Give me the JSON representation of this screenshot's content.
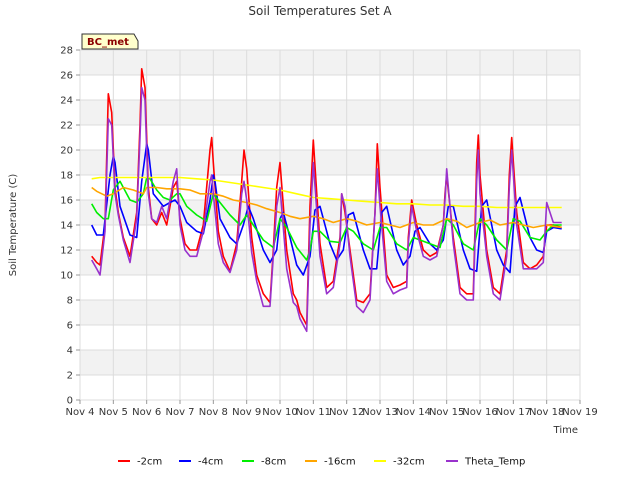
{
  "chart_data": {
    "type": "line",
    "title": "Soil Temperatures Set A",
    "xlabel": "Time",
    "ylabel": "Soil Temperature (C)",
    "station_label": "BC_met",
    "ylim": [
      0,
      28
    ],
    "yticks": [
      0,
      2,
      4,
      6,
      8,
      10,
      12,
      14,
      16,
      18,
      20,
      22,
      24,
      26,
      28
    ],
    "xlim": [
      4,
      19
    ],
    "xticks": [
      4,
      5,
      6,
      7,
      8,
      9,
      10,
      11,
      12,
      13,
      14,
      15,
      16,
      17,
      18,
      19
    ],
    "xtick_labels": [
      "Nov 4",
      "Nov 5",
      "Nov 6",
      "Nov 7",
      "Nov 8",
      "Nov 9",
      "Nov 10",
      "Nov 11",
      "Nov 12",
      "Nov 13",
      "Nov 14",
      "Nov 15",
      "Nov 16",
      "Nov 17",
      "Nov 18",
      "Nov 19"
    ],
    "grid": true,
    "legend_position": "bottom",
    "series": [
      {
        "name": "-2cm",
        "color": "#ff0000",
        "x": [
          4.35,
          4.5,
          4.6,
          4.75,
          4.85,
          4.95,
          5.05,
          5.15,
          5.3,
          5.5,
          5.7,
          5.8,
          5.85,
          5.95,
          6.0,
          6.05,
          6.15,
          6.3,
          6.45,
          6.6,
          6.8,
          6.9,
          7.0,
          7.15,
          7.3,
          7.5,
          7.7,
          7.9,
          7.95,
          8.0,
          8.15,
          8.3,
          8.5,
          8.7,
          8.85,
          8.92,
          9.0,
          9.15,
          9.3,
          9.5,
          9.7,
          9.8,
          9.9,
          10.0,
          10.2,
          10.4,
          10.5,
          10.6,
          10.7,
          10.8,
          10.9,
          11.0,
          11.2,
          11.4,
          11.6,
          11.8,
          11.85,
          11.95,
          12.1,
          12.3,
          12.5,
          12.7,
          12.85,
          12.92,
          13.0,
          13.2,
          13.4,
          13.6,
          13.8,
          13.85,
          13.95,
          14.1,
          14.3,
          14.5,
          14.7,
          14.9,
          14.95,
          15.0,
          15.2,
          15.4,
          15.6,
          15.8,
          15.9,
          15.95,
          16.0,
          16.2,
          16.4,
          16.6,
          16.8,
          16.88,
          16.95,
          17.1,
          17.3,
          17.5,
          17.7,
          17.9,
          18.0,
          18.2,
          18.45
        ],
        "y": [
          11.5,
          11.0,
          10.8,
          14.0,
          24.5,
          23.0,
          17.0,
          15.0,
          13.0,
          11.5,
          15.0,
          22.0,
          26.5,
          25.0,
          21.0,
          17.0,
          14.5,
          14.0,
          15.0,
          14.0,
          17.0,
          17.5,
          14.5,
          12.5,
          12.0,
          12.0,
          14.0,
          20.0,
          21.0,
          19.0,
          13.5,
          11.5,
          10.3,
          12.5,
          17.5,
          20.0,
          18.5,
          13.0,
          10.0,
          8.5,
          7.8,
          12.0,
          17.0,
          19.0,
          12.0,
          8.5,
          8.0,
          7.0,
          6.5,
          6.0,
          15.5,
          20.8,
          12.5,
          9.0,
          9.5,
          13.0,
          16.5,
          15.0,
          12.0,
          8.0,
          7.8,
          8.5,
          15.0,
          20.5,
          17.0,
          10.0,
          9.0,
          9.2,
          9.5,
          13.0,
          16.0,
          14.0,
          12.0,
          11.5,
          11.8,
          14.0,
          16.5,
          18.0,
          13.0,
          9.0,
          8.5,
          8.5,
          19.0,
          21.2,
          18.0,
          12.0,
          9.0,
          8.5,
          12.0,
          18.0,
          21.0,
          15.0,
          11.0,
          10.5,
          10.8,
          11.5,
          14.0,
          14.0,
          13.8
        ]
      },
      {
        "name": "-4cm",
        "color": "#0000ff",
        "x": [
          4.35,
          4.5,
          4.7,
          4.9,
          5.0,
          5.05,
          5.2,
          5.5,
          5.7,
          5.85,
          6.0,
          6.05,
          6.2,
          6.5,
          6.7,
          6.85,
          7.0,
          7.2,
          7.5,
          7.7,
          7.9,
          8.0,
          8.05,
          8.2,
          8.5,
          8.7,
          8.9,
          9.05,
          9.2,
          9.5,
          9.7,
          9.9,
          10.0,
          10.1,
          10.3,
          10.5,
          10.7,
          10.9,
          11.05,
          11.2,
          11.5,
          11.7,
          11.9,
          12.05,
          12.2,
          12.5,
          12.7,
          12.9,
          13.05,
          13.2,
          13.5,
          13.7,
          13.9,
          14.05,
          14.2,
          14.5,
          14.7,
          14.9,
          15.05,
          15.2,
          15.5,
          15.7,
          15.9,
          16.05,
          16.2,
          16.5,
          16.7,
          16.9,
          17.05,
          17.2,
          17.5,
          17.7,
          17.9,
          18.0,
          18.2,
          18.45
        ],
        "y": [
          14.0,
          13.2,
          13.2,
          18.0,
          19.5,
          19.0,
          15.5,
          13.2,
          13.0,
          17.5,
          20.5,
          20.0,
          16.5,
          15.5,
          15.8,
          16.0,
          15.5,
          14.2,
          13.5,
          13.3,
          16.0,
          18.0,
          17.5,
          14.5,
          13.0,
          12.5,
          14.0,
          15.5,
          14.5,
          12.0,
          11.0,
          12.0,
          14.5,
          15.0,
          13.0,
          10.8,
          10.0,
          11.5,
          15.2,
          15.5,
          12.5,
          11.2,
          12.0,
          14.8,
          15.0,
          12.0,
          10.5,
          10.5,
          15.0,
          15.5,
          12.0,
          10.8,
          11.5,
          13.5,
          13.8,
          12.5,
          12.0,
          12.8,
          15.5,
          15.5,
          12.0,
          10.5,
          10.3,
          15.5,
          16.0,
          12.0,
          10.8,
          10.2,
          15.5,
          16.2,
          13.0,
          12.0,
          11.8,
          13.5,
          13.8,
          13.7
        ]
      },
      {
        "name": "-8cm",
        "color": "#00ee00",
        "x": [
          4.35,
          4.5,
          4.7,
          4.85,
          5.0,
          5.2,
          5.5,
          5.7,
          5.9,
          6.0,
          6.1,
          6.3,
          6.5,
          6.7,
          6.9,
          7.0,
          7.2,
          7.5,
          7.8,
          8.0,
          8.2,
          8.5,
          8.8,
          9.0,
          9.2,
          9.5,
          9.8,
          10.0,
          10.2,
          10.5,
          10.8,
          10.9,
          11.0,
          11.2,
          11.5,
          11.8,
          12.0,
          12.2,
          12.5,
          12.8,
          13.0,
          13.2,
          13.5,
          13.8,
          14.0,
          14.2,
          14.5,
          14.8,
          15.0,
          15.2,
          15.5,
          15.8,
          16.0,
          16.2,
          16.5,
          16.8,
          17.0,
          17.2,
          17.5,
          17.8,
          18.0,
          18.2,
          18.45
        ],
        "y": [
          15.7,
          15.0,
          14.5,
          14.5,
          16.8,
          17.5,
          16.0,
          15.8,
          16.5,
          17.8,
          17.7,
          16.8,
          16.2,
          16.0,
          16.5,
          16.5,
          15.5,
          14.8,
          14.3,
          16.5,
          15.8,
          14.8,
          14.0,
          14.8,
          14.0,
          12.8,
          12.2,
          14.5,
          13.8,
          12.2,
          11.2,
          12.0,
          13.5,
          13.5,
          12.7,
          12.6,
          13.8,
          13.5,
          12.5,
          12.0,
          13.8,
          13.8,
          12.5,
          12.0,
          13.0,
          12.8,
          12.5,
          12.2,
          14.5,
          14.0,
          12.5,
          12.0,
          14.5,
          14.0,
          12.8,
          12.0,
          14.5,
          14.3,
          13.0,
          12.8,
          13.5,
          14.0,
          14.0
        ]
      },
      {
        "name": "-16cm",
        "color": "#ffa500",
        "x": [
          4.35,
          4.5,
          4.8,
          5.0,
          5.3,
          5.6,
          5.9,
          6.0,
          6.3,
          6.6,
          7.0,
          7.3,
          7.6,
          8.0,
          8.3,
          8.6,
          9.0,
          9.3,
          9.6,
          10.0,
          10.3,
          10.6,
          11.0,
          11.3,
          11.6,
          12.0,
          12.3,
          12.6,
          13.0,
          13.3,
          13.6,
          14.0,
          14.3,
          14.6,
          15.0,
          15.3,
          15.6,
          16.0,
          16.3,
          16.6,
          17.0,
          17.3,
          17.6,
          18.0,
          18.2,
          18.45
        ],
        "y": [
          17.0,
          16.7,
          16.3,
          16.5,
          17.0,
          16.8,
          16.5,
          17.0,
          17.0,
          16.9,
          16.9,
          16.8,
          16.5,
          16.5,
          16.3,
          16.0,
          15.8,
          15.6,
          15.3,
          15.0,
          14.7,
          14.5,
          14.7,
          14.5,
          14.2,
          14.5,
          14.3,
          14.0,
          14.2,
          14.0,
          13.8,
          14.2,
          14.0,
          14.0,
          14.5,
          14.3,
          13.8,
          14.2,
          14.4,
          14.0,
          14.2,
          14.0,
          13.8,
          14.0,
          13.9,
          13.8
        ]
      },
      {
        "name": "-32cm",
        "color": "#ffff00",
        "x": [
          4.35,
          4.6,
          5.0,
          5.5,
          6.0,
          6.5,
          7.0,
          7.5,
          8.0,
          8.5,
          9.0,
          9.5,
          10.0,
          10.5,
          11.0,
          11.5,
          12.0,
          12.5,
          13.0,
          13.5,
          14.0,
          14.5,
          15.0,
          15.5,
          16.0,
          16.5,
          17.0,
          17.5,
          18.0,
          18.45
        ],
        "y": [
          17.7,
          17.8,
          17.8,
          17.8,
          17.8,
          17.8,
          17.8,
          17.7,
          17.6,
          17.4,
          17.2,
          17.0,
          16.8,
          16.5,
          16.2,
          16.1,
          16.0,
          15.9,
          15.8,
          15.7,
          15.7,
          15.6,
          15.6,
          15.5,
          15.5,
          15.4,
          15.4,
          15.4,
          15.4,
          15.4
        ]
      },
      {
        "name": "Theta_Temp",
        "color": "#9932cc",
        "x": [
          4.35,
          4.5,
          4.6,
          4.75,
          4.85,
          4.95,
          5.05,
          5.15,
          5.3,
          5.5,
          5.7,
          5.8,
          5.85,
          5.95,
          6.0,
          6.05,
          6.15,
          6.3,
          6.45,
          6.6,
          6.8,
          6.9,
          7.0,
          7.15,
          7.3,
          7.5,
          7.7,
          7.9,
          7.95,
          8.0,
          8.15,
          8.3,
          8.5,
          8.7,
          8.85,
          8.92,
          9.0,
          9.15,
          9.3,
          9.5,
          9.7,
          9.8,
          9.9,
          10.0,
          10.2,
          10.4,
          10.5,
          10.6,
          10.7,
          10.8,
          10.9,
          11.0,
          11.2,
          11.4,
          11.6,
          11.8,
          11.85,
          11.95,
          12.1,
          12.3,
          12.5,
          12.7,
          12.85,
          12.92,
          13.0,
          13.2,
          13.4,
          13.6,
          13.8,
          13.85,
          13.95,
          14.1,
          14.3,
          14.5,
          14.7,
          14.9,
          14.95,
          15.0,
          15.2,
          15.4,
          15.6,
          15.8,
          15.9,
          15.95,
          16.0,
          16.2,
          16.4,
          16.6,
          16.8,
          16.88,
          16.95,
          17.1,
          17.3,
          17.5,
          17.7,
          17.9,
          18.0,
          18.2,
          18.45
        ],
        "y": [
          11.2,
          10.5,
          10.0,
          13.5,
          22.5,
          22.0,
          16.5,
          14.8,
          12.8,
          11.0,
          14.5,
          21.0,
          25.0,
          24.0,
          20.0,
          16.5,
          14.5,
          14.2,
          15.5,
          14.5,
          17.5,
          18.5,
          14.0,
          12.0,
          11.5,
          11.5,
          13.5,
          17.5,
          18.0,
          16.5,
          12.5,
          11.0,
          10.2,
          12.0,
          16.5,
          17.5,
          16.0,
          11.8,
          9.5,
          7.5,
          7.5,
          11.5,
          15.5,
          17.0,
          10.5,
          7.8,
          7.5,
          6.5,
          6.0,
          5.5,
          14.0,
          19.0,
          11.5,
          8.5,
          9.0,
          12.5,
          16.5,
          15.5,
          11.5,
          7.5,
          7.0,
          8.0,
          15.0,
          18.5,
          15.5,
          9.5,
          8.5,
          8.8,
          9.0,
          12.5,
          15.5,
          13.5,
          11.5,
          11.2,
          11.5,
          14.0,
          16.0,
          18.5,
          12.5,
          8.5,
          8.0,
          8.0,
          17.5,
          20.0,
          16.5,
          11.5,
          8.5,
          8.0,
          11.5,
          17.0,
          20.0,
          14.0,
          10.5,
          10.5,
          10.5,
          11.0,
          15.8,
          14.2,
          14.2
        ]
      }
    ]
  }
}
